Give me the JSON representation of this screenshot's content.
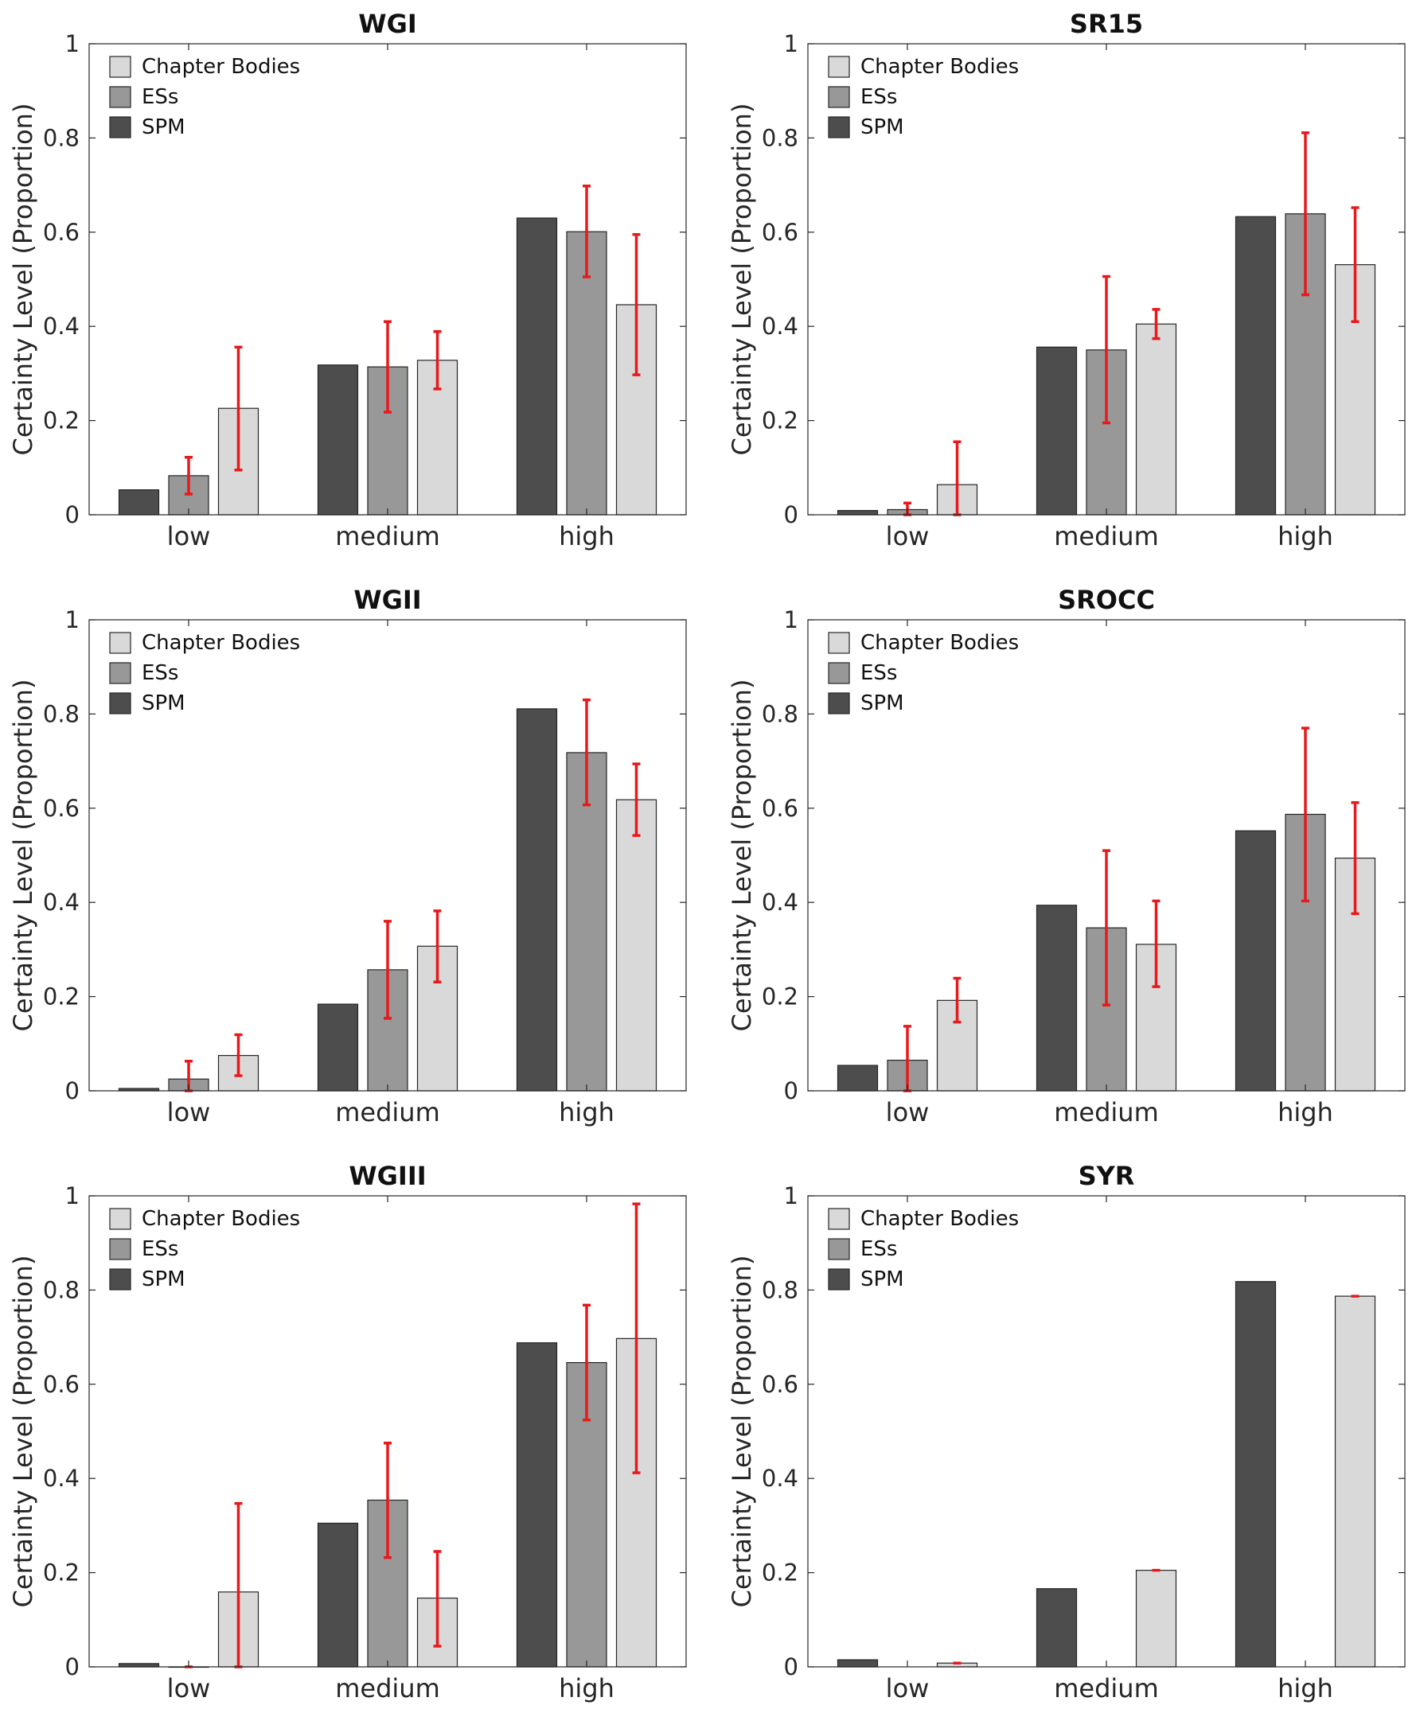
{
  "chart_data": [
    {
      "type": "bar",
      "title": "WGI",
      "categories": [
        "low",
        "medium",
        "high"
      ],
      "ylabel": "Certainty Level (Proportion)",
      "ylim": [
        0,
        1
      ],
      "yticks": [
        0,
        0.2,
        0.4,
        0.6,
        0.8,
        1
      ],
      "ytick_labels": [
        "0",
        "0.2",
        "0.4",
        "0.6",
        "0.8",
        "1"
      ],
      "legend": [
        "Chapter Bodies",
        "ESs",
        "SPM"
      ],
      "series": [
        {
          "name": "SPM",
          "color": "#4d4d4d",
          "values": [
            0.053,
            0.318,
            0.63
          ],
          "err_low": [
            null,
            null,
            null
          ],
          "err_high": [
            null,
            null,
            null
          ]
        },
        {
          "name": "ESs",
          "color": "#989898",
          "values": [
            0.083,
            0.314,
            0.601
          ],
          "err_low": [
            0.044,
            0.218,
            0.505
          ],
          "err_high": [
            0.122,
            0.41,
            0.698
          ]
        },
        {
          "name": "Chapter Bodies",
          "color": "#d9d9d9",
          "values": [
            0.226,
            0.328,
            0.446
          ],
          "err_low": [
            0.095,
            0.267,
            0.297
          ],
          "err_high": [
            0.356,
            0.389,
            0.595
          ]
        }
      ]
    },
    {
      "type": "bar",
      "title": "SR15",
      "categories": [
        "low",
        "medium",
        "high"
      ],
      "ylabel": "Certainty Level (Proportion)",
      "ylim": [
        0,
        1
      ],
      "yticks": [
        0,
        0.2,
        0.4,
        0.6,
        0.8,
        1
      ],
      "ytick_labels": [
        "0",
        "0.2",
        "0.4",
        "0.6",
        "0.8",
        "1"
      ],
      "legend": [
        "Chapter Bodies",
        "ESs",
        "SPM"
      ],
      "series": [
        {
          "name": "SPM",
          "color": "#4d4d4d",
          "values": [
            0.009,
            0.356,
            0.633
          ],
          "err_low": [
            null,
            null,
            null
          ],
          "err_high": [
            null,
            null,
            null
          ]
        },
        {
          "name": "ESs",
          "color": "#989898",
          "values": [
            0.011,
            0.35,
            0.639
          ],
          "err_low": [
            0.0,
            0.195,
            0.467
          ],
          "err_high": [
            0.025,
            0.506,
            0.811
          ]
        },
        {
          "name": "Chapter Bodies",
          "color": "#d9d9d9",
          "values": [
            0.064,
            0.405,
            0.531
          ],
          "err_low": [
            0.0,
            0.374,
            0.41
          ],
          "err_high": [
            0.155,
            0.436,
            0.652
          ]
        }
      ]
    },
    {
      "type": "bar",
      "title": "WGII",
      "categories": [
        "low",
        "medium",
        "high"
      ],
      "ylabel": "Certainty Level (Proportion)",
      "ylim": [
        0,
        1
      ],
      "yticks": [
        0,
        0.2,
        0.4,
        0.6,
        0.8,
        1
      ],
      "ytick_labels": [
        "0",
        "0.2",
        "0.4",
        "0.6",
        "0.8",
        "1"
      ],
      "legend": [
        "Chapter Bodies",
        "ESs",
        "SPM"
      ],
      "series": [
        {
          "name": "SPM",
          "color": "#4d4d4d",
          "values": [
            0.005,
            0.184,
            0.811
          ],
          "err_low": [
            null,
            null,
            null
          ],
          "err_high": [
            null,
            null,
            null
          ]
        },
        {
          "name": "ESs",
          "color": "#989898",
          "values": [
            0.025,
            0.257,
            0.718
          ],
          "err_low": [
            0.0,
            0.154,
            0.607
          ],
          "err_high": [
            0.063,
            0.36,
            0.83
          ]
        },
        {
          "name": "Chapter Bodies",
          "color": "#d9d9d9",
          "values": [
            0.075,
            0.307,
            0.618
          ],
          "err_low": [
            0.032,
            0.231,
            0.542
          ],
          "err_high": [
            0.119,
            0.382,
            0.694
          ]
        }
      ]
    },
    {
      "type": "bar",
      "title": "SROCC",
      "categories": [
        "low",
        "medium",
        "high"
      ],
      "ylabel": "Certainty Level (Proportion)",
      "ylim": [
        0,
        1
      ],
      "yticks": [
        0,
        0.2,
        0.4,
        0.6,
        0.8,
        1
      ],
      "ytick_labels": [
        "0",
        "0.2",
        "0.4",
        "0.6",
        "0.8",
        "1"
      ],
      "legend": [
        "Chapter Bodies",
        "ESs",
        "SPM"
      ],
      "series": [
        {
          "name": "SPM",
          "color": "#4d4d4d",
          "values": [
            0.054,
            0.394,
            0.552
          ],
          "err_low": [
            null,
            null,
            null
          ],
          "err_high": [
            null,
            null,
            null
          ]
        },
        {
          "name": "ESs",
          "color": "#989898",
          "values": [
            0.065,
            0.346,
            0.587
          ],
          "err_low": [
            0.0,
            0.182,
            0.403
          ],
          "err_high": [
            0.137,
            0.51,
            0.77
          ]
        },
        {
          "name": "Chapter Bodies",
          "color": "#d9d9d9",
          "values": [
            0.192,
            0.311,
            0.494
          ],
          "err_low": [
            0.146,
            0.221,
            0.376
          ],
          "err_high": [
            0.239,
            0.403,
            0.612
          ]
        }
      ]
    },
    {
      "type": "bar",
      "title": "WGIII",
      "categories": [
        "low",
        "medium",
        "high"
      ],
      "ylabel": "Certainty Level (Proportion)",
      "ylim": [
        0,
        1
      ],
      "yticks": [
        0,
        0.2,
        0.4,
        0.6,
        0.8,
        1
      ],
      "ytick_labels": [
        "0",
        "0.2",
        "0.4",
        "0.6",
        "0.8",
        "1"
      ],
      "legend": [
        "Chapter Bodies",
        "ESs",
        "SPM"
      ],
      "series": [
        {
          "name": "SPM",
          "color": "#4d4d4d",
          "values": [
            0.007,
            0.305,
            0.688
          ],
          "err_low": [
            null,
            null,
            null
          ],
          "err_high": [
            null,
            null,
            null
          ]
        },
        {
          "name": "ESs",
          "color": "#989898",
          "values": [
            0.0,
            0.354,
            0.646
          ],
          "err_low": [
            0.0,
            0.232,
            0.524
          ],
          "err_high": [
            0.0,
            0.475,
            0.768
          ]
        },
        {
          "name": "Chapter Bodies",
          "color": "#d9d9d9",
          "values": [
            0.159,
            0.146,
            0.697
          ],
          "err_low": [
            0.0,
            0.044,
            0.412
          ],
          "err_high": [
            0.347,
            0.245,
            0.983
          ]
        }
      ]
    },
    {
      "type": "bar",
      "title": "SYR",
      "categories": [
        "low",
        "medium",
        "high"
      ],
      "ylabel": "Certainty Level (Proportion)",
      "ylim": [
        0,
        1
      ],
      "yticks": [
        0,
        0.2,
        0.4,
        0.6,
        0.8,
        1
      ],
      "ytick_labels": [
        "0",
        "0.2",
        "0.4",
        "0.6",
        "0.8",
        "1"
      ],
      "legend": [
        "Chapter Bodies",
        "ESs",
        "SPM"
      ],
      "series": [
        {
          "name": "SPM",
          "color": "#4d4d4d",
          "values": [
            0.015,
            0.166,
            0.818
          ],
          "err_low": [
            null,
            null,
            null
          ],
          "err_high": [
            null,
            null,
            null
          ]
        },
        {
          "name": "ESs",
          "color": "#989898",
          "values": [
            null,
            null,
            null
          ],
          "err_low": [
            null,
            null,
            null
          ],
          "err_high": [
            null,
            null,
            null
          ]
        },
        {
          "name": "Chapter Bodies",
          "color": "#d9d9d9",
          "values": [
            0.008,
            0.205,
            0.787
          ],
          "err_low": [
            0.008,
            0.205,
            0.787
          ],
          "err_high": [
            0.008,
            0.205,
            0.787
          ]
        }
      ]
    }
  ]
}
